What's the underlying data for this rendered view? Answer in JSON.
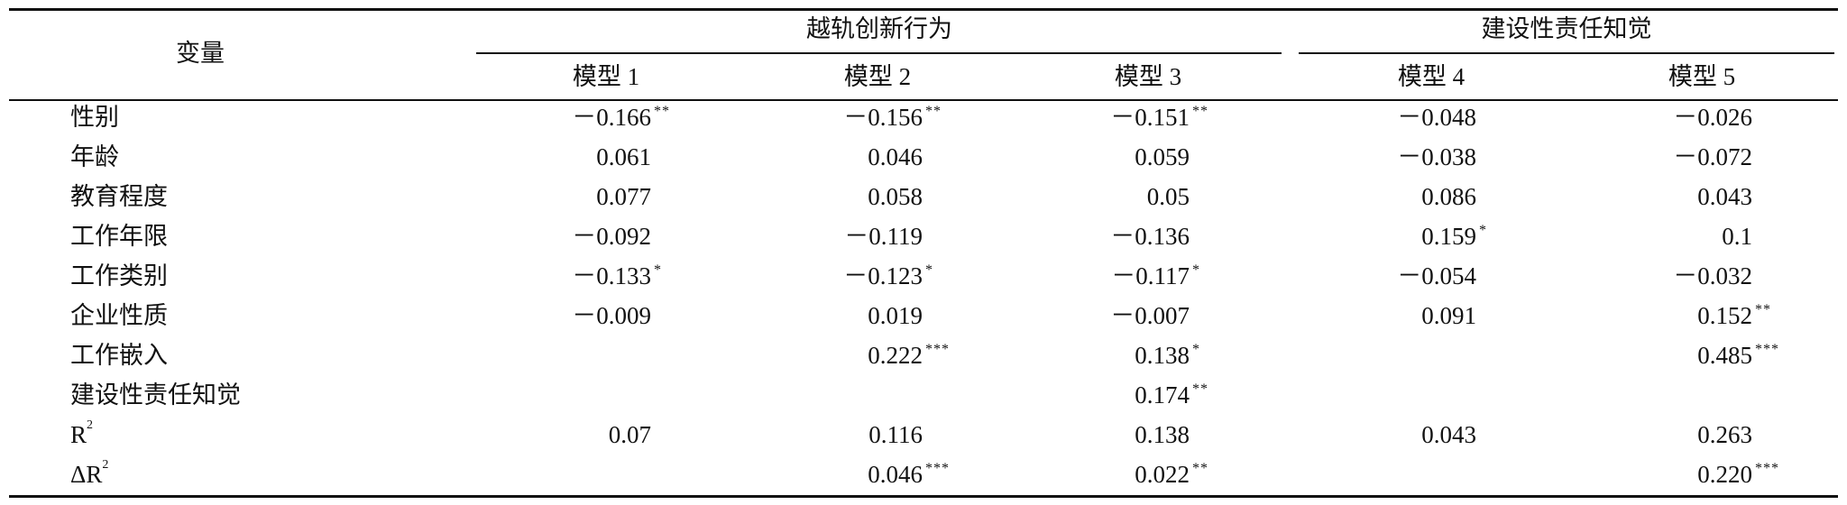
{
  "table": {
    "header": {
      "row_label": "变量",
      "groups": [
        {
          "title": "越轨创新行为",
          "models": [
            "模型 1",
            "模型 2",
            "模型 3"
          ]
        },
        {
          "title": "建设性责任知觉",
          "models": [
            "模型 4",
            "模型 5"
          ]
        }
      ]
    },
    "rows": [
      {
        "label": "性别",
        "cells": [
          {
            "v": "－0.166",
            "sig": "**"
          },
          {
            "v": "－0.156",
            "sig": "**"
          },
          {
            "v": "－0.151",
            "sig": "**"
          },
          {
            "v": "－0.048"
          },
          {
            "v": "－0.026"
          }
        ]
      },
      {
        "label": "年龄",
        "cells": [
          {
            "v": "0.061"
          },
          {
            "v": "0.046"
          },
          {
            "v": "0.059"
          },
          {
            "v": "－0.038"
          },
          {
            "v": "－0.072"
          }
        ]
      },
      {
        "label": "教育程度",
        "cells": [
          {
            "v": "0.077"
          },
          {
            "v": "0.058"
          },
          {
            "v": "0.05"
          },
          {
            "v": "0.086"
          },
          {
            "v": "0.043"
          }
        ]
      },
      {
        "label": "工作年限",
        "cells": [
          {
            "v": "－0.092"
          },
          {
            "v": "－0.119"
          },
          {
            "v": "－0.136"
          },
          {
            "v": "0.159",
            "sig": "*"
          },
          {
            "v": "0.1"
          }
        ]
      },
      {
        "label": "工作类别",
        "cells": [
          {
            "v": "－0.133",
            "sig": "*"
          },
          {
            "v": "－0.123",
            "sig": "*"
          },
          {
            "v": "－0.117",
            "sig": "*"
          },
          {
            "v": "－0.054"
          },
          {
            "v": "－0.032"
          }
        ]
      },
      {
        "label": "企业性质",
        "cells": [
          {
            "v": "－0.009"
          },
          {
            "v": "0.019"
          },
          {
            "v": "－0.007"
          },
          {
            "v": "0.091"
          },
          {
            "v": "0.152",
            "sig": "**"
          }
        ]
      },
      {
        "label": "工作嵌入",
        "cells": [
          null,
          {
            "v": "0.222",
            "sig": "***"
          },
          {
            "v": "0.138",
            "sig": "*"
          },
          null,
          {
            "v": "0.485",
            "sig": "***"
          }
        ]
      },
      {
        "label": "建设性责任知觉",
        "cells": [
          null,
          null,
          {
            "v": "0.174",
            "sig": "**"
          },
          null,
          null
        ]
      },
      {
        "label": "R",
        "label_sup": "2",
        "cells": [
          {
            "v": "0.07"
          },
          {
            "v": "0.116"
          },
          {
            "v": "0.138"
          },
          {
            "v": "0.043"
          },
          {
            "v": "0.263"
          }
        ]
      },
      {
        "label": "ΔR",
        "label_sup": "2",
        "cells": [
          null,
          {
            "v": "0.046",
            "sig": "***"
          },
          {
            "v": "0.022",
            "sig": "**"
          },
          null,
          {
            "v": "0.220",
            "sig": "***"
          }
        ]
      }
    ]
  }
}
